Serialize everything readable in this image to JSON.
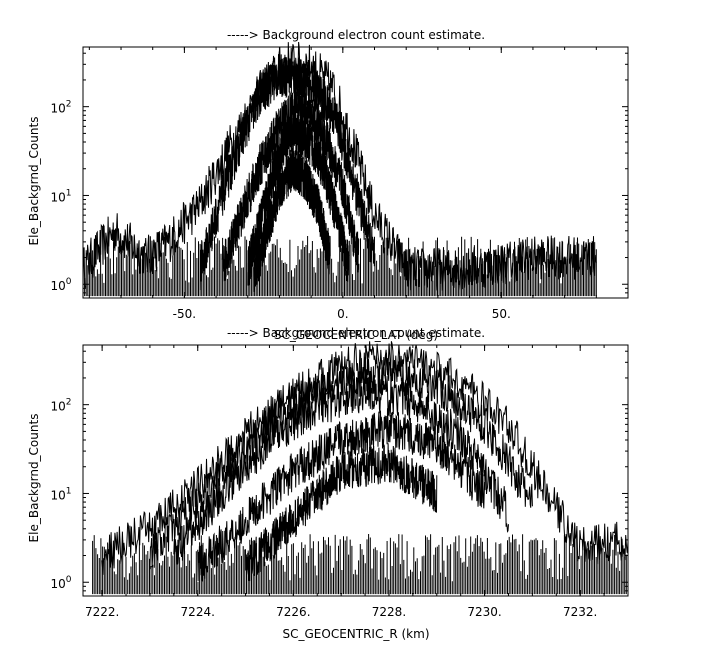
{
  "chart_data": [
    {
      "type": "scatter",
      "title": "-----> Background electron count estimate.",
      "xlabel": "SC_GEOCENTRIC_LAT (deg)",
      "ylabel": "Ele_Backgrnd_Counts",
      "xlim": [
        -82,
        90
      ],
      "ylim": [
        0.7,
        470
      ],
      "yscale": "log",
      "xticks": [
        -50,
        0,
        50
      ],
      "xtick_labels": [
        "-50.",
        "0.",
        "50."
      ],
      "yticks": [
        1,
        10,
        100
      ],
      "grid": false,
      "legend": "none",
      "series": [
        {
          "x": [
            -82,
            -72,
            -62,
            -55,
            -45,
            -35,
            -25,
            -18,
            -10,
            -3,
            3,
            10,
            20,
            40,
            60,
            80
          ],
          "y": [
            1.5,
            4,
            2,
            3,
            8,
            40,
            170,
            320,
            290,
            160,
            40,
            6,
            1.5,
            1.5,
            2,
            2
          ]
        },
        {
          "x": [
            -45,
            -38,
            -32,
            -26,
            -20,
            -14,
            -8,
            -2,
            4,
            10
          ],
          "y": [
            1.5,
            10,
            45,
            140,
            230,
            210,
            150,
            70,
            12,
            2
          ]
        },
        {
          "x": [
            -38,
            -32,
            -26,
            -20,
            -15,
            -10,
            -5,
            0,
            5
          ],
          "y": [
            1.5,
            6,
            22,
            60,
            100,
            80,
            40,
            12,
            2
          ]
        },
        {
          "x": [
            -30,
            -26,
            -22,
            -18,
            -14,
            -10,
            -6,
            -2,
            2
          ],
          "y": [
            1.5,
            5,
            18,
            42,
            48,
            38,
            20,
            6,
            1.5
          ]
        },
        {
          "x": [
            -28,
            -24,
            -20,
            -16,
            -12,
            -8,
            -4
          ],
          "y": [
            1.2,
            4,
            12,
            20,
            16,
            8,
            2
          ]
        }
      ]
    },
    {
      "type": "scatter",
      "title": "-----> Background electron count estimate.",
      "xlabel": "SC_GEOCENTRIC_R (km)",
      "ylabel": "Ele_Backgrnd_Counts",
      "xlim": [
        7221.6,
        7233.0
      ],
      "ylim": [
        0.7,
        470
      ],
      "yscale": "log",
      "xticks": [
        7222,
        7224,
        7226,
        7228,
        7230,
        7232
      ],
      "xtick_labels": [
        "7222.",
        "7224.",
        "7226.",
        "7228.",
        "7230.",
        "7232."
      ],
      "yticks": [
        1,
        10,
        100
      ],
      "grid": false,
      "legend": "none",
      "series": [
        {
          "x": [
            7222.0,
            7223.0,
            7224.0,
            7225.0,
            7226.0,
            7227.0,
            7227.8,
            7228.5,
            7229.5,
            7230.5,
            7231.2,
            7232.0,
            7233.0
          ],
          "y": [
            2,
            4,
            12,
            45,
            130,
            270,
            340,
            310,
            180,
            60,
            12,
            2.5,
            3
          ]
        },
        {
          "x": [
            7223.0,
            7224.0,
            7225.0,
            7226.0,
            7227.0,
            7228.0,
            7229.0,
            7230.0,
            7231.0
          ],
          "y": [
            2,
            8,
            35,
            100,
            190,
            230,
            170,
            60,
            8
          ]
        },
        {
          "x": [
            7223.5,
            7224.5,
            7225.5,
            7226.5,
            7227.5,
            7228.5,
            7229.5,
            7230.5
          ],
          "y": [
            2,
            10,
            40,
            95,
            140,
            110,
            45,
            6
          ]
        },
        {
          "x": [
            7224.0,
            7225.0,
            7226.0,
            7227.0,
            7228.0,
            7229.0,
            7230.0
          ],
          "y": [
            1.5,
            5,
            18,
            40,
            55,
            35,
            10
          ]
        },
        {
          "x": [
            7225.0,
            7226.0,
            7227.0,
            7228.0,
            7229.0
          ],
          "y": [
            1.5,
            5,
            18,
            22,
            10
          ]
        }
      ]
    }
  ]
}
